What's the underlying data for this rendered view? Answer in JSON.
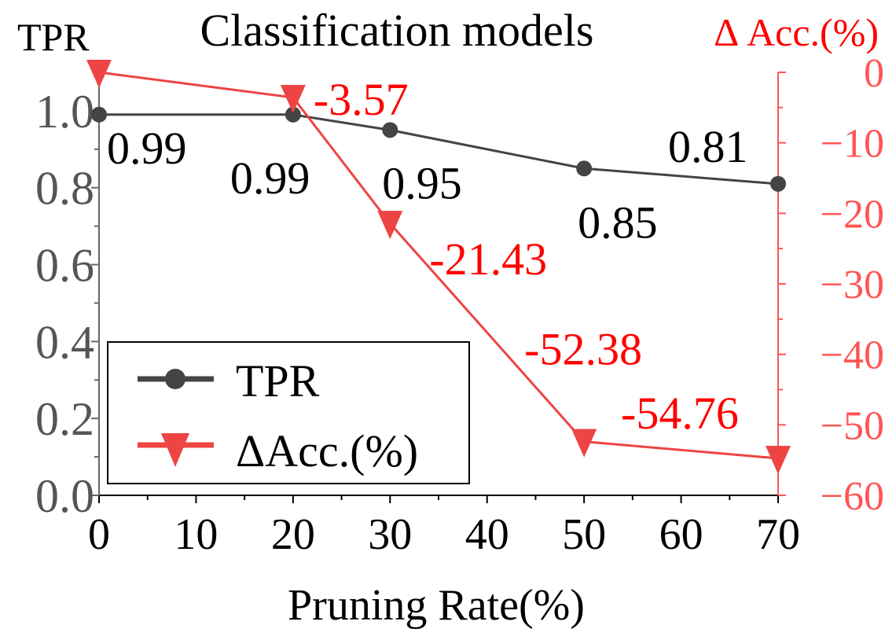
{
  "chart_data": {
    "type": "line",
    "title": "Classification models",
    "xlabel": "Pruning Rate(%)",
    "ylabel_left": "TPR",
    "ylabel_right": "Δ Acc.(%)",
    "x": [
      0,
      20,
      30,
      50,
      70
    ],
    "x_ticks": [
      "0",
      "10",
      "20",
      "30",
      "40",
      "50",
      "60",
      "70"
    ],
    "x_tick_values": [
      0,
      10,
      20,
      30,
      40,
      50,
      60,
      70
    ],
    "xlim": [
      0,
      70
    ],
    "y_left_ticks": [
      "0.0",
      "0.2",
      "0.4",
      "0.6",
      "0.8",
      "1.0"
    ],
    "y_left_tick_values": [
      0.0,
      0.2,
      0.4,
      0.6,
      0.8,
      1.0
    ],
    "ylim_left": [
      0,
      1.1
    ],
    "y_right_ticks": [
      "0",
      "−10",
      "−20",
      "−30",
      "−40",
      "−50",
      "−60"
    ],
    "y_right_tick_values": [
      0,
      -10,
      -20,
      -30,
      -40,
      -50,
      -60
    ],
    "ylim_right": [
      -60,
      0
    ],
    "series": [
      {
        "name": "TPR",
        "axis": "left",
        "marker": "circle",
        "values": [
          0.99,
          0.99,
          0.95,
          0.85,
          0.81
        ],
        "labels": [
          "0.99",
          "0.99",
          "0.95",
          "0.85",
          "0.81"
        ]
      },
      {
        "name": "ΔAcc.(%)",
        "axis": "right",
        "marker": "triangle-down",
        "values": [
          0,
          -3.57,
          -21.43,
          -52.38,
          -54.76
        ],
        "labels": [
          "",
          "-3.57",
          "-21.43",
          "-52.38",
          "-54.76"
        ]
      }
    ],
    "legend_position": "bottom-left",
    "colors": {
      "tpr": "#444444",
      "acc": "#ee4444",
      "acc_text": "#ff0000",
      "axis_left": "#666666",
      "axis_right": "#ff5555"
    }
  }
}
